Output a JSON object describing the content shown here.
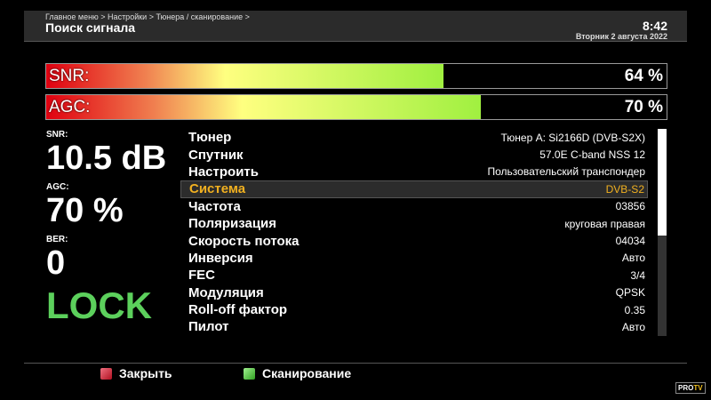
{
  "header": {
    "breadcrumb": "Главное меню > Настройки > Тюнера / сканирование >",
    "title": "Поиск сигнала",
    "time": "8:42",
    "date": "Вторник  2 августа 2022"
  },
  "bars": [
    {
      "label": "SNR:",
      "percent": 64,
      "text": "64 %"
    },
    {
      "label": "AGC:",
      "percent": 70,
      "text": "70 %"
    }
  ],
  "stats": {
    "snr_label": "SNR:",
    "snr_value": "10.5 dB",
    "agc_label": "AGC:",
    "agc_value": "70 %",
    "ber_label": "BER:",
    "ber_value": "0",
    "lock": "LOCK"
  },
  "params": [
    {
      "key": "Тюнер",
      "value": "Тюнер A: Si2166D (DVB-S2X)"
    },
    {
      "key": "Спутник",
      "value": "57.0E C-band NSS 12"
    },
    {
      "key": "Настроить",
      "value": "Пользовательский транспондер"
    },
    {
      "key": "Система",
      "value": "DVB-S2",
      "selected": true
    },
    {
      "key": "Частота",
      "value": "03856"
    },
    {
      "key": "Поляризация",
      "value": "круговая правая"
    },
    {
      "key": "Скорость потока",
      "value": "04034"
    },
    {
      "key": "Инверсия",
      "value": "Авто"
    },
    {
      "key": "FEC",
      "value": "3/4"
    },
    {
      "key": "Модуляция",
      "value": "QPSK"
    },
    {
      "key": "Roll-off фактор",
      "value": "0.35"
    },
    {
      "key": "Пилот",
      "value": "Авто"
    }
  ],
  "footer": {
    "close": "Закрыть",
    "close_color": "#d02030",
    "scan": "Сканирование",
    "scan_color": "#50c040",
    "logo": "PRO TV"
  },
  "colors": {
    "selected": "#f0b020",
    "lock": "#5cd05c"
  }
}
